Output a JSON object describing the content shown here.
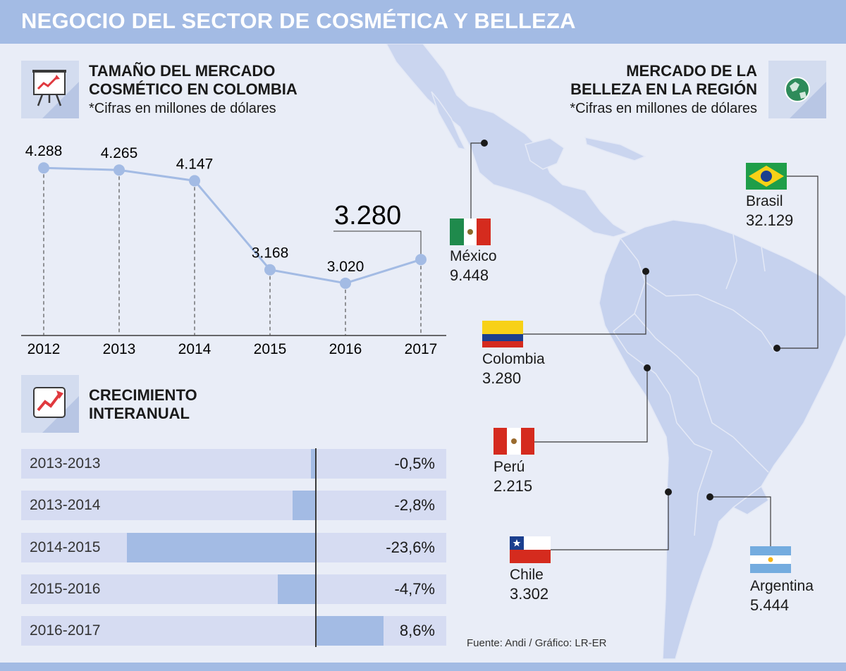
{
  "banner_title": "NEGOCIO DEL SECTOR DE COSMÉTICA Y BELLEZA",
  "market_colombia": {
    "title_line1": "TAMAÑO DEL MERCADO",
    "title_line2": "COSMÉTICO EN COLOMBIA",
    "subtitle": "*Cifras en millones de dólares",
    "icon": "presentation-chart-icon"
  },
  "regional_market": {
    "title_line1": "MERCADO DE LA",
    "title_line2": "BELLEZA EN LA REGIÓN",
    "subtitle": "*Cifras en millones de dólares",
    "icon": "globe-icon"
  },
  "growth": {
    "title_line1": "CRECIMIENTO",
    "title_line2": "INTERANUAL",
    "icon": "growth-arrow-icon"
  },
  "source": "Fuente: Andi / Gráfico: LR-ER",
  "chart_data": [
    {
      "type": "line",
      "x": [
        "2012",
        "2013",
        "2014",
        "2015",
        "2016",
        "2017"
      ],
      "values": [
        4288,
        4265,
        4147,
        3168,
        3020,
        3280
      ],
      "value_labels": [
        "4.288",
        "4.265",
        "4.147",
        "3.168",
        "3.020",
        ""
      ],
      "highlight_label": "3.280",
      "ylim": [
        2600,
        4600
      ],
      "grid": false,
      "color": "#a3bbe4"
    },
    {
      "type": "bar",
      "orientation": "horizontal",
      "categories": [
        "2013-2013",
        "2013-2014",
        "2014-2015",
        "2015-2016",
        "2016-2017"
      ],
      "values": [
        -0.5,
        -2.8,
        -23.6,
        -4.7,
        8.6
      ],
      "value_labels": [
        "-0,5%",
        "-2,8%",
        "-23,6%",
        "-4,7%",
        "8,6%"
      ],
      "color": "#a3bbe4"
    }
  ],
  "map": {
    "land_color": "#c6d2ee",
    "countries": [
      {
        "name": "México",
        "value": "9.448",
        "flag": "mexico-flag"
      },
      {
        "name": "Brasil",
        "value": "32.129",
        "flag": "brazil-flag"
      },
      {
        "name": "Colombia",
        "value": "3.280",
        "flag": "colombia-flag"
      },
      {
        "name": "Perú",
        "value": "2.215",
        "flag": "peru-flag"
      },
      {
        "name": "Chile",
        "value": "3.302",
        "flag": "chile-flag"
      },
      {
        "name": "Argentina",
        "value": "5.444",
        "flag": "argentina-flag"
      }
    ]
  }
}
